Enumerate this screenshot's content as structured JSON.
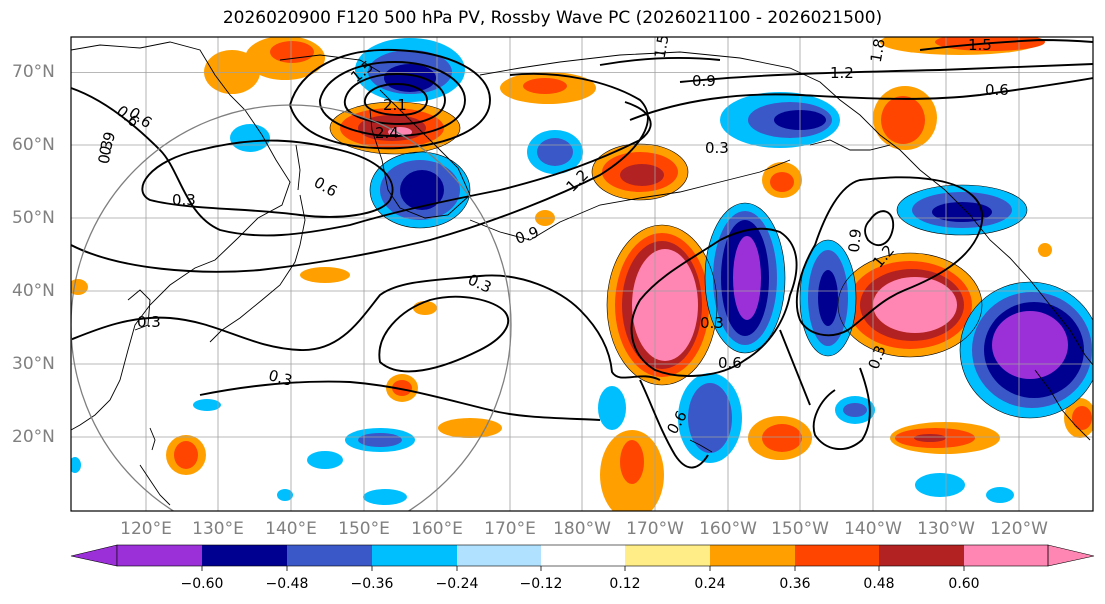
{
  "title": "2026020900 F120 500 hPa PV, Rossby Wave PC (2026021100 - 2026021500)",
  "latitude_labels": [
    "70°N",
    "60°N",
    "50°N",
    "40°N",
    "30°N",
    "20°N"
  ],
  "longitude_labels": [
    "120°E",
    "130°E",
    "140°E",
    "150°E",
    "160°E",
    "170°E",
    "180°W",
    "170°W",
    "160°W",
    "150°W",
    "140°W",
    "130°W",
    "120°W"
  ],
  "contour_labels": [
    "1.5",
    "1.8",
    "1.5",
    "1.2",
    "0.9",
    "0.6",
    "0.6",
    "0.3",
    "0.3",
    "0.3",
    "0.6",
    "0.9",
    "1.2",
    "1.5",
    "2.1",
    "2.4",
    "0.3",
    "0.3",
    "0.3",
    "0.6",
    "0.6",
    "0.9",
    "1.2",
    "0.9",
    "0.3",
    "0.6",
    "0.3"
  ],
  "colorbar": {
    "tick_labels": [
      "−0.60",
      "−0.48",
      "−0.36",
      "−0.24",
      "−0.12",
      "0.12",
      "0.24",
      "0.36",
      "0.48",
      "0.60"
    ],
    "colors": [
      "#9b30d8",
      "#000090",
      "#3b58c8",
      "#00bfff",
      "#b0e2ff",
      "#ffffff",
      "#ffee88",
      "#ffa000",
      "#ff4500",
      "#b22222",
      "#ff85b2"
    ]
  },
  "colors": {
    "neg_strong": "#9b30d8",
    "neg_dark": "#000090",
    "neg_mid": "#3b58c8",
    "neg_light": "#00bfff",
    "neg_faint": "#b0e2ff",
    "pos_faint": "#ffee88",
    "pos_light": "#ffa000",
    "pos_mid": "#ff4500",
    "pos_dark": "#b22222",
    "pos_strong": "#ff85b2"
  }
}
